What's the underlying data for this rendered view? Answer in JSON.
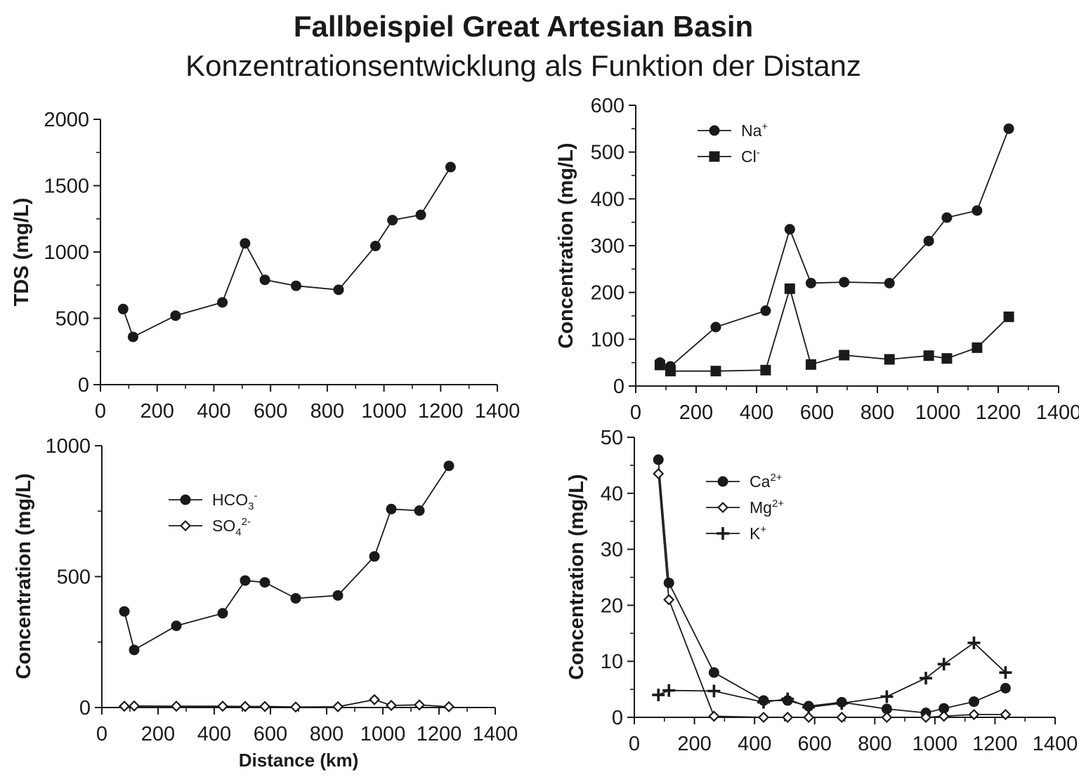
{
  "header": {
    "title": "Fallbeispiel Great Artesian Basin",
    "subtitle": "Konzentrationsentwicklung als Funktion der Distanz"
  },
  "colors": {
    "ink": "#1a1a1a",
    "background": "#ffffff"
  },
  "chart_data": [
    {
      "id": "tds",
      "type": "line",
      "title": "",
      "xlabel": "",
      "ylabel": "TDS (mg/L)",
      "xlim": [
        0,
        1400
      ],
      "ylim": [
        0,
        2000
      ],
      "xticks": [
        "0",
        "200",
        "400",
        "600",
        "800",
        "1000",
        "1200",
        "1400"
      ],
      "yticks": [
        "0",
        "500",
        "1000",
        "1500",
        "2000"
      ],
      "legend": "none",
      "series": [
        {
          "marker": "circle",
          "x": [
            80,
            115,
            265,
            430,
            510,
            580,
            690,
            840,
            970,
            1030,
            1130,
            1235
          ],
          "y": [
            570,
            360,
            520,
            620,
            1065,
            790,
            745,
            715,
            1045,
            1240,
            1280,
            1640
          ]
        }
      ]
    },
    {
      "id": "na-cl",
      "type": "line",
      "title": "",
      "xlabel": "",
      "ylabel": "Concentration (mg/L)",
      "xlim": [
        0,
        1400
      ],
      "ylim": [
        0,
        600
      ],
      "xticks": [
        "0",
        "200",
        "400",
        "600",
        "800",
        "1000",
        "1200",
        "1400"
      ],
      "yticks": [
        "0",
        "100",
        "200",
        "300",
        "400",
        "500",
        "600"
      ],
      "legend": "top-left",
      "series": [
        {
          "name": "Na",
          "superscript": "+",
          "marker": "circle",
          "x": [
            80,
            115,
            265,
            430,
            510,
            580,
            690,
            840,
            970,
            1030,
            1130,
            1235
          ],
          "y": [
            50,
            42,
            126,
            161,
            335,
            220,
            222,
            220,
            310,
            360,
            375,
            550
          ]
        },
        {
          "name": "Cl",
          "superscript": "-",
          "marker": "square",
          "x": [
            80,
            115,
            265,
            430,
            510,
            580,
            690,
            840,
            970,
            1030,
            1130,
            1235
          ],
          "y": [
            45,
            32,
            32,
            34,
            208,
            46,
            66,
            57,
            65,
            59,
            82,
            148
          ]
        }
      ]
    },
    {
      "id": "hco3-so4",
      "type": "line",
      "title": "",
      "xlabel": "Distance (km)",
      "ylabel": "Concentration (mg/L)",
      "xlim": [
        0,
        1400
      ],
      "ylim": [
        0,
        1000
      ],
      "xticks": [
        "0",
        "200",
        "400",
        "600",
        "800",
        "1000",
        "1200",
        "1400"
      ],
      "yticks": [
        "0",
        "500",
        "1000"
      ],
      "legend": "top-left",
      "series": [
        {
          "name": "HCO",
          "subscript": "3",
          "superscript": "-",
          "marker": "circle",
          "x": [
            80,
            115,
            265,
            430,
            510,
            580,
            690,
            840,
            970,
            1030,
            1130,
            1235
          ],
          "y": [
            367,
            220,
            312,
            360,
            485,
            478,
            417,
            428,
            577,
            758,
            752,
            923
          ]
        },
        {
          "name": "SO",
          "subscript": "4",
          "superscript": "2-",
          "marker": "diamond-open",
          "x": [
            80,
            115,
            265,
            430,
            510,
            580,
            690,
            840,
            970,
            1030,
            1130,
            1235
          ],
          "y": [
            5,
            6,
            5,
            5,
            4,
            4,
            2,
            3,
            30,
            8,
            10,
            3
          ]
        }
      ]
    },
    {
      "id": "ca-mg-k",
      "type": "line",
      "title": "",
      "xlabel": "",
      "ylabel": "Concentration (mg/L)",
      "xlim": [
        0,
        1400
      ],
      "ylim": [
        0,
        50
      ],
      "xticks": [
        "0",
        "200",
        "400",
        "600",
        "800",
        "1000",
        "1200",
        "1400"
      ],
      "yticks": [
        "0",
        "10",
        "20",
        "30",
        "40",
        "50"
      ],
      "legend": "top-center",
      "series": [
        {
          "name": "Ca",
          "superscript": "2+",
          "marker": "circle",
          "x": [
            80,
            115,
            265,
            430,
            510,
            580,
            690,
            840,
            970,
            1030,
            1130,
            1235
          ],
          "y": [
            46,
            24,
            8,
            3,
            3,
            2,
            2.7,
            1.5,
            0.8,
            1.6,
            2.8,
            5.2
          ]
        },
        {
          "name": "Mg",
          "superscript": "2+",
          "marker": "diamond-open",
          "x": [
            80,
            115,
            265,
            430,
            510,
            580,
            690,
            840,
            970,
            1030,
            1130,
            1235
          ],
          "y": [
            43.5,
            21,
            0.2,
            0,
            0,
            0,
            0,
            0,
            0,
            0.2,
            0.5,
            0.5
          ]
        },
        {
          "name": "K",
          "superscript": "+",
          "marker": "plus",
          "x": [
            80,
            115,
            265,
            430,
            510,
            580,
            690,
            840,
            970,
            1030,
            1130,
            1235
          ],
          "y": [
            4,
            4.8,
            4.7,
            2.7,
            3.3,
            1.8,
            2.5,
            3.7,
            7,
            9.5,
            13.3,
            8
          ]
        }
      ]
    }
  ]
}
